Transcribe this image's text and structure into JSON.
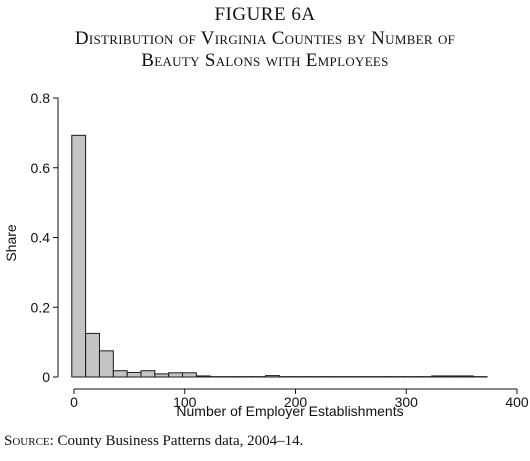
{
  "figure_label": "FIGURE 6A",
  "title_lines": [
    "Distribution of Virginia Counties by Number of",
    "Beauty Salons with Employees"
  ],
  "source": {
    "label": "Source:",
    "text": " County Business Patterns data, 2004–14."
  },
  "chart_data": {
    "type": "bar",
    "title": "Distribution of Virginia Counties by Number of Beauty Salons with Employees",
    "xlabel": "Number of Employer Establishments",
    "ylabel": "Share",
    "xlim": [
      -10,
      402
    ],
    "ylim": [
      0,
      0.8
    ],
    "x_ticks": [
      0,
      100,
      200,
      300,
      400
    ],
    "x_tick_labels": [
      "0",
      "100",
      "200",
      "300",
      "400"
    ],
    "y_ticks": [
      0,
      0.2,
      0.4,
      0.6,
      0.8
    ],
    "y_tick_labels": [
      "0",
      "0.2",
      "0.4",
      "0.6",
      "0.8"
    ],
    "bin_width": 12.5,
    "bins": [
      {
        "x0": -2,
        "value": 0.693
      },
      {
        "x0": 10.5,
        "value": 0.125
      },
      {
        "x0": 23,
        "value": 0.075
      },
      {
        "x0": 35.5,
        "value": 0.018
      },
      {
        "x0": 48,
        "value": 0.013
      },
      {
        "x0": 60.5,
        "value": 0.018
      },
      {
        "x0": 73,
        "value": 0.009
      },
      {
        "x0": 85.5,
        "value": 0.012
      },
      {
        "x0": 98,
        "value": 0.012
      },
      {
        "x0": 110.5,
        "value": 0.003
      },
      {
        "x0": 123,
        "value": 0.001
      },
      {
        "x0": 135.5,
        "value": 0.001
      },
      {
        "x0": 148,
        "value": 0.001
      },
      {
        "x0": 160.5,
        "value": 0.001
      },
      {
        "x0": 173,
        "value": 0.004
      },
      {
        "x0": 185.5,
        "value": 0.001
      },
      {
        "x0": 198,
        "value": 0.001
      },
      {
        "x0": 210.5,
        "value": 0.001
      },
      {
        "x0": 223,
        "value": 0.001
      },
      {
        "x0": 235.5,
        "value": 0.001
      },
      {
        "x0": 248,
        "value": 0.001
      },
      {
        "x0": 260.5,
        "value": 0.001
      },
      {
        "x0": 273,
        "value": 0.001
      },
      {
        "x0": 285.5,
        "value": 0.001
      },
      {
        "x0": 298,
        "value": 0.001
      },
      {
        "x0": 310.5,
        "value": 0.001
      },
      {
        "x0": 323,
        "value": 0.003
      },
      {
        "x0": 335.5,
        "value": 0.003
      },
      {
        "x0": 348,
        "value": 0.003
      },
      {
        "x0": 360.5,
        "value": 0.001
      }
    ],
    "bar_fill": "#c4c4c4",
    "bar_stroke": "#1a1a1a",
    "grid": false,
    "legend": "none"
  }
}
